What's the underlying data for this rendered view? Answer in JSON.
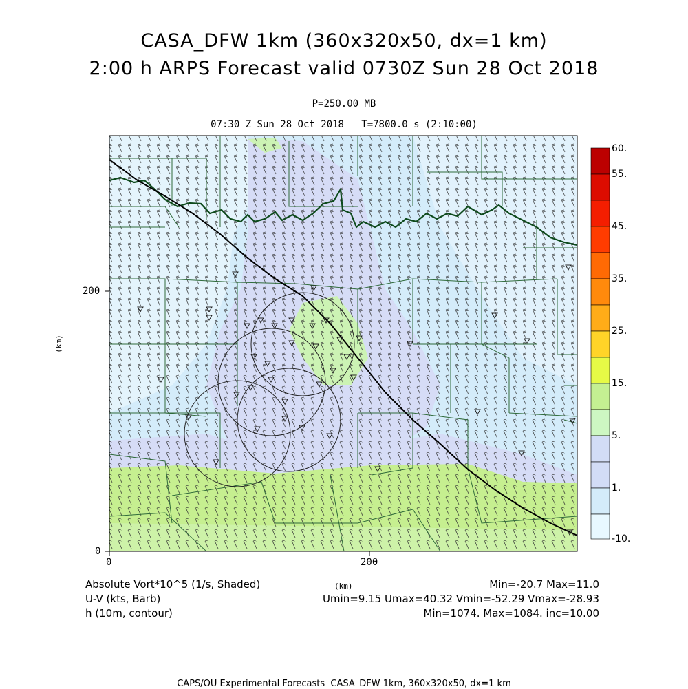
{
  "title_line1": "CASA_DFW 1km (360x320x50, dx=1 km)",
  "title_line2": "2:00 h ARPS Forecast valid 0730Z Sun 28 Oct 2018",
  "level": "P=250.00 MB",
  "time_line": "07:30 Z Sun 28 Oct 2018   T=7800.0 s (2:10:00)",
  "axes": {
    "x_label": "(km)",
    "y_label": "(km)",
    "x_ticks": [
      "0",
      "200"
    ],
    "y_ticks": [
      "0",
      "200"
    ],
    "x_range_km": [
      0,
      360
    ],
    "y_range_km": [
      0,
      320
    ]
  },
  "colorbar": {
    "labels": [
      "60.",
      "55.",
      "45.",
      "35.",
      "25.",
      "15.",
      "5.",
      "1.",
      "-10."
    ],
    "colors": [
      "#e8f8ff",
      "#d4ecfa",
      "#d2dcf6",
      "#cdf7c2",
      "#c4f092",
      "#e6fa46",
      "#ffd428",
      "#ffac18",
      "#ff8a0c",
      "#ff6a04",
      "#ff3c00",
      "#f41e00",
      "#dc0c00",
      "#bc0000"
    ]
  },
  "legend": {
    "field1": "Absolute Vort*10^5 (1/s, Shaded)",
    "field1_stats": "Min=-20.7 Max=11.0",
    "field2": "U-V (kts, Barb)",
    "field2_stats": "Umin=9.15 Umax=40.32 Vmin=-52.29 Vmax=-28.93",
    "field3": "h (10m, contour)",
    "field3_stats": "Min=1074. Max=1084. inc=10.00"
  },
  "footer": "CAPS/OU Experimental Forecasts  CASA_DFW 1km, 360x320x50, dx=1 km",
  "map_colors": {
    "background": "#d4ecfa",
    "light_blue": "#e4f4fc",
    "lavender": "#d6dcf6",
    "green": "#ccf3b4",
    "yellow_green": "#c6ef90",
    "county_lines": "#2f6a3a",
    "river": "#0e4a1c",
    "contour": "#000000"
  }
}
